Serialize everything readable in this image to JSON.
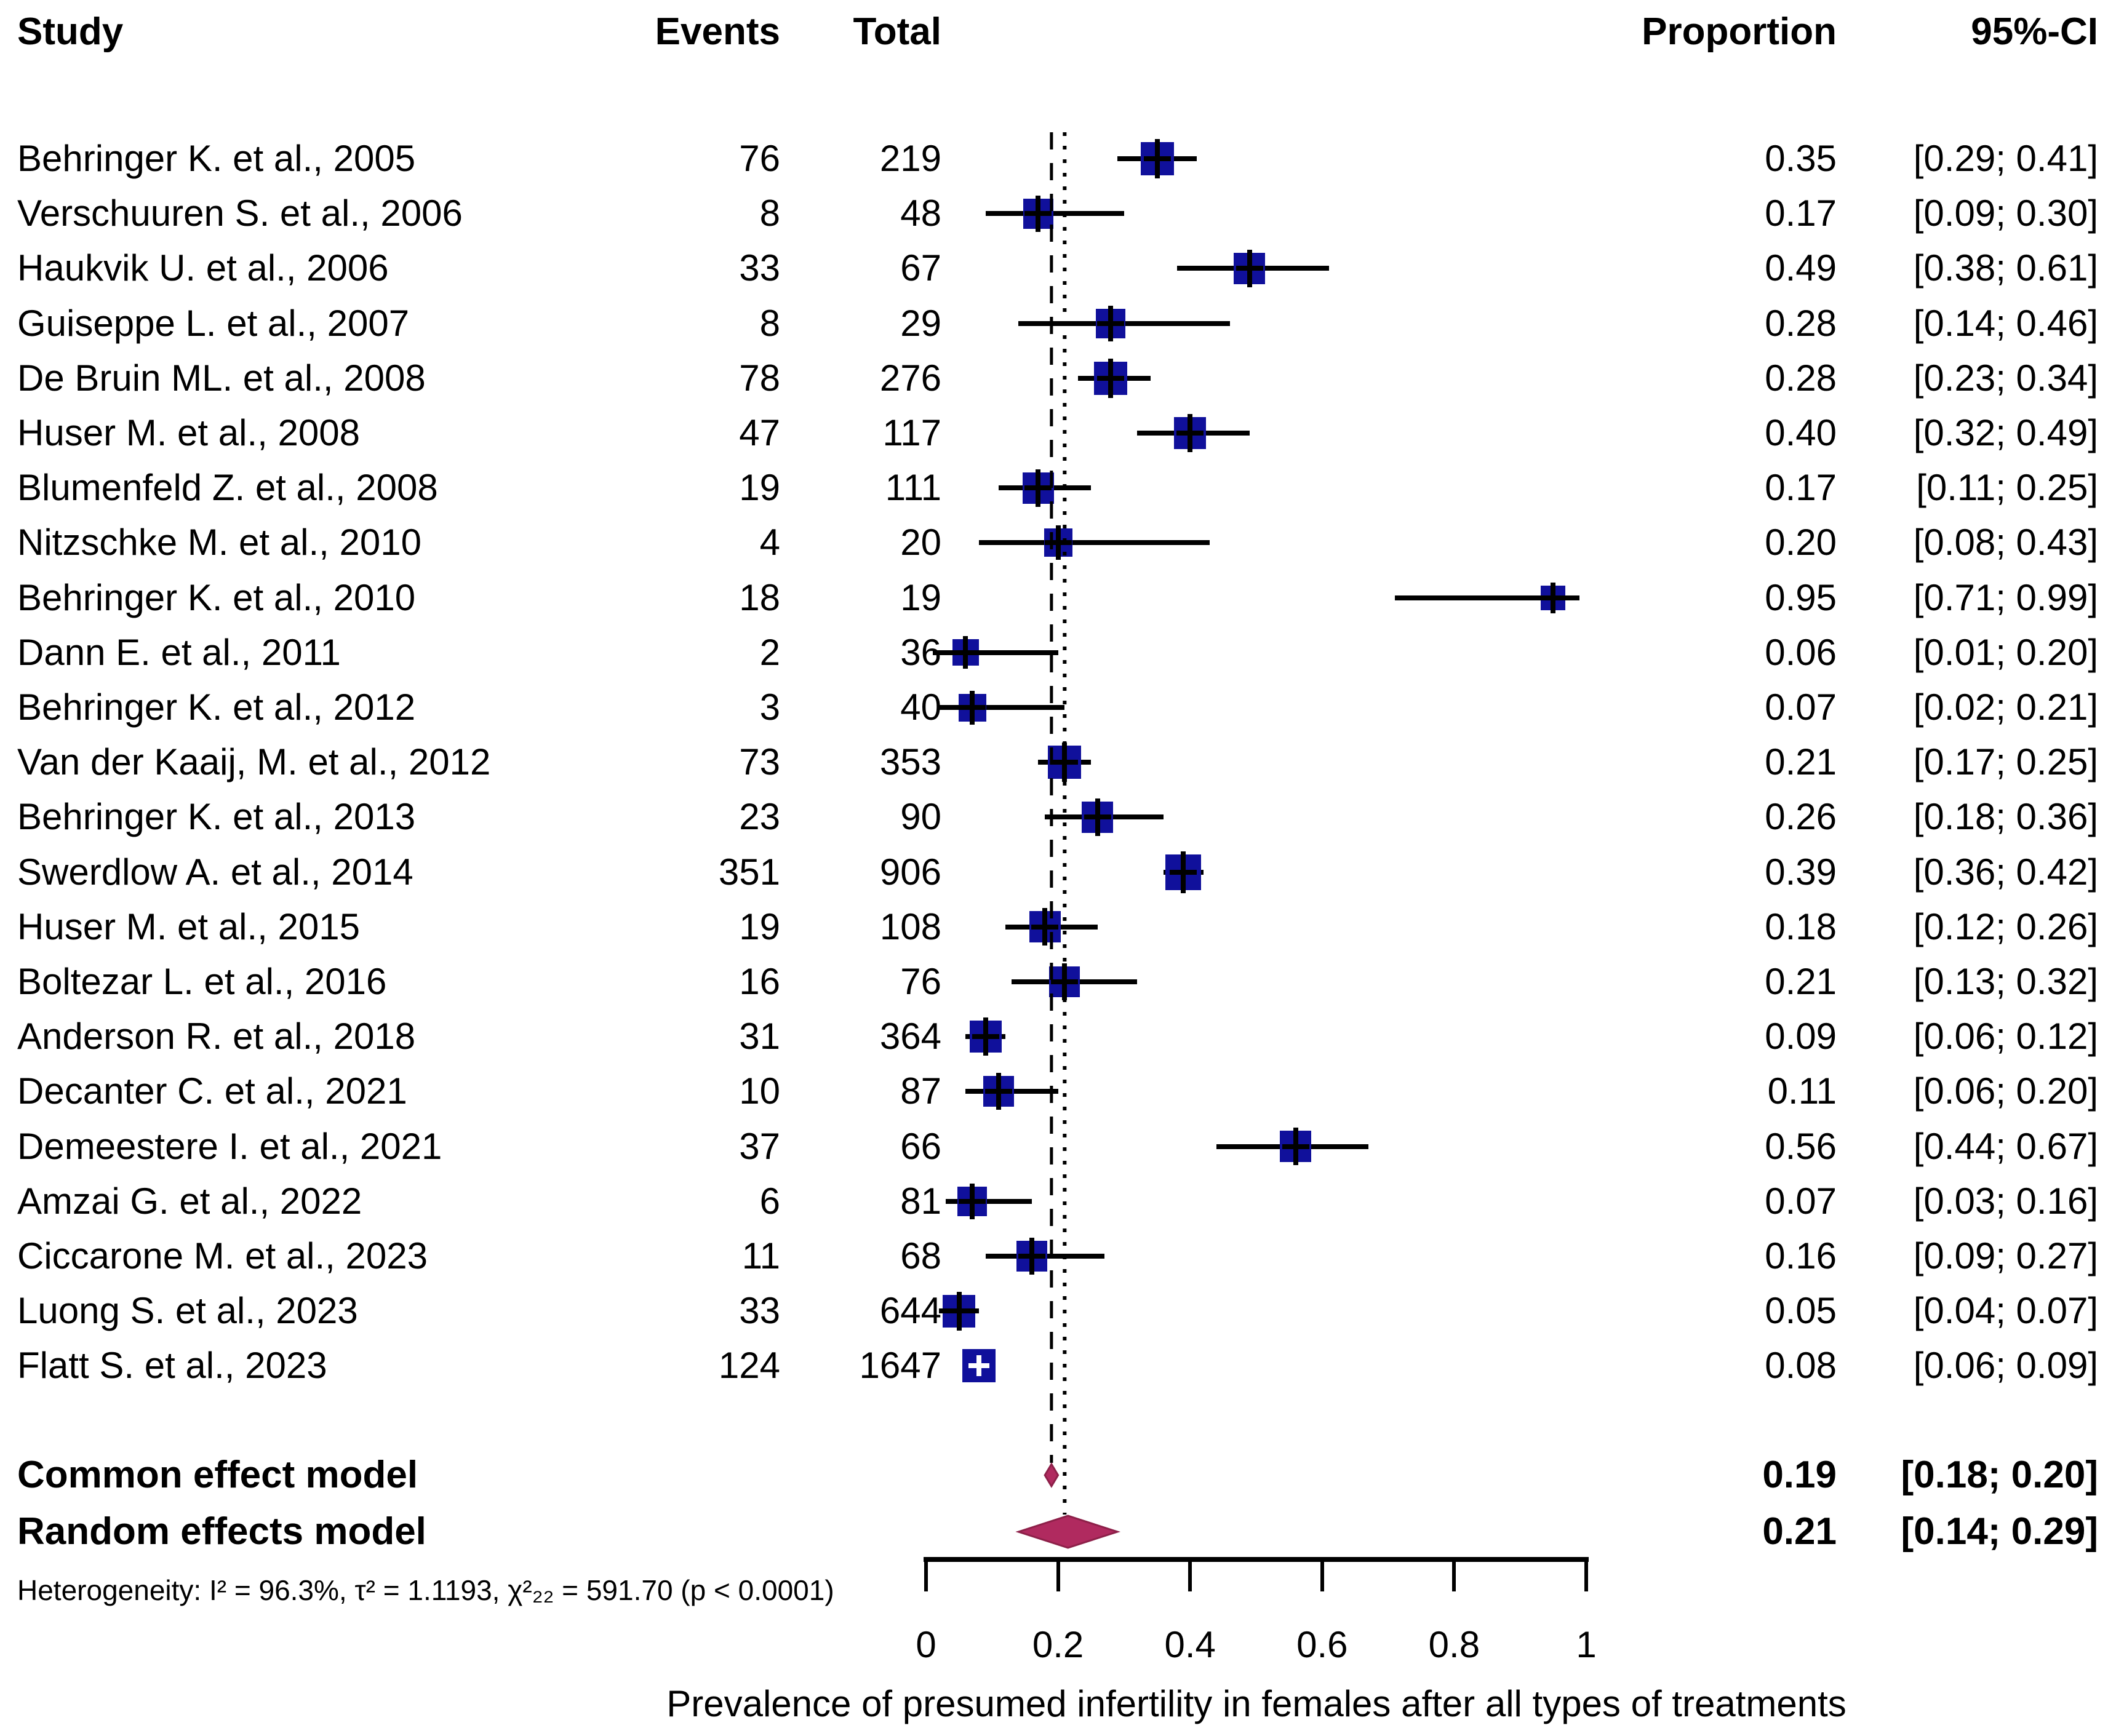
{
  "chart_data": {
    "type": "forest",
    "title": "",
    "xlabel": "Prevalence of presumed infertility in females after all types of treatments",
    "headers": {
      "study": "Study",
      "events": "Events",
      "total": "Total",
      "proportion": "Proportion",
      "ci": "95%-CI"
    },
    "axis": {
      "min": 0,
      "max": 1,
      "ticks": [
        0,
        0.2,
        0.4,
        0.6,
        0.8,
        1
      ],
      "tick_labels": [
        "0",
        "0.2",
        "0.4",
        "0.6",
        "0.8",
        "1"
      ]
    },
    "studies": [
      {
        "name": "Behringer K. et al., 2005",
        "events": 76,
        "total": 219,
        "proportion": 0.35,
        "ci_lower": 0.29,
        "ci_upper": 0.41,
        "proportion_label": "0.35",
        "ci_label": "[0.29; 0.41]",
        "marker_px": 54,
        "cross": "black"
      },
      {
        "name": "Verschuuren S. et al., 2006",
        "events": 8,
        "total": 48,
        "proportion": 0.17,
        "ci_lower": 0.09,
        "ci_upper": 0.3,
        "proportion_label": "0.17",
        "ci_label": "[0.09; 0.30]",
        "marker_px": 49,
        "cross": "black"
      },
      {
        "name": "Haukvik U. et al., 2006",
        "events": 33,
        "total": 67,
        "proportion": 0.49,
        "ci_lower": 0.38,
        "ci_upper": 0.61,
        "proportion_label": "0.49",
        "ci_label": "[0.38; 0.61]",
        "marker_px": 51,
        "cross": "black"
      },
      {
        "name": "Guiseppe L. et al., 2007",
        "events": 8,
        "total": 29,
        "proportion": 0.28,
        "ci_lower": 0.14,
        "ci_upper": 0.46,
        "proportion_label": "0.28",
        "ci_label": "[0.14; 0.46]",
        "marker_px": 48,
        "cross": "black"
      },
      {
        "name": "De Bruin ML. et al., 2008",
        "events": 78,
        "total": 276,
        "proportion": 0.28,
        "ci_lower": 0.23,
        "ci_upper": 0.34,
        "proportion_label": "0.28",
        "ci_label": "[0.23; 0.34]",
        "marker_px": 54,
        "cross": "black"
      },
      {
        "name": "Huser M. et al., 2008",
        "events": 47,
        "total": 117,
        "proportion": 0.4,
        "ci_lower": 0.32,
        "ci_upper": 0.49,
        "proportion_label": "0.40",
        "ci_label": "[0.32; 0.49]",
        "marker_px": 52,
        "cross": "black"
      },
      {
        "name": "Blumenfeld Z. et al., 2008",
        "events": 19,
        "total": 111,
        "proportion": 0.17,
        "ci_lower": 0.11,
        "ci_upper": 0.25,
        "proportion_label": "0.17",
        "ci_label": "[0.11; 0.25]",
        "marker_px": 51,
        "cross": "black"
      },
      {
        "name": "Nitzschke M. et al., 2010",
        "events": 4,
        "total": 20,
        "proportion": 0.2,
        "ci_lower": 0.08,
        "ci_upper": 0.43,
        "proportion_label": "0.20",
        "ci_label": "[0.08; 0.43]",
        "marker_px": 46,
        "cross": "black"
      },
      {
        "name": "Behringer K. et al., 2010",
        "events": 18,
        "total": 19,
        "proportion": 0.95,
        "ci_lower": 0.71,
        "ci_upper": 0.99,
        "proportion_label": "0.95",
        "ci_label": "[0.71; 0.99]",
        "marker_px": 40,
        "cross": "black"
      },
      {
        "name": "Dann E. et al., 2011",
        "events": 2,
        "total": 36,
        "proportion": 0.06,
        "ci_lower": 0.01,
        "ci_upper": 0.2,
        "proportion_label": "0.06",
        "ci_label": "[0.01; 0.20]",
        "marker_px": 43,
        "cross": "black"
      },
      {
        "name": "Behringer K. et al., 2012",
        "events": 3,
        "total": 40,
        "proportion": 0.07,
        "ci_lower": 0.02,
        "ci_upper": 0.21,
        "proportion_label": "0.07",
        "ci_label": "[0.02; 0.21]",
        "marker_px": 45,
        "cross": "black"
      },
      {
        "name": "Van der Kaaij, M. et al., 2012",
        "events": 73,
        "total": 353,
        "proportion": 0.21,
        "ci_lower": 0.17,
        "ci_upper": 0.25,
        "proportion_label": "0.21",
        "ci_label": "[0.17; 0.25]",
        "marker_px": 54,
        "cross": "black"
      },
      {
        "name": "Behringer K. et al., 2013",
        "events": 23,
        "total": 90,
        "proportion": 0.26,
        "ci_lower": 0.18,
        "ci_upper": 0.36,
        "proportion_label": "0.26",
        "ci_label": "[0.18; 0.36]",
        "marker_px": 51,
        "cross": "black"
      },
      {
        "name": "Swerdlow A. et al., 2014",
        "events": 351,
        "total": 906,
        "proportion": 0.39,
        "ci_lower": 0.36,
        "ci_upper": 0.42,
        "proportion_label": "0.39",
        "ci_label": "[0.36; 0.42]",
        "marker_px": 58,
        "cross": "black"
      },
      {
        "name": "Huser M. et al., 2015",
        "events": 19,
        "total": 108,
        "proportion": 0.18,
        "ci_lower": 0.12,
        "ci_upper": 0.26,
        "proportion_label": "0.18",
        "ci_label": "[0.12; 0.26]",
        "marker_px": 51,
        "cross": "black"
      },
      {
        "name": "Boltezar L. et al., 2016",
        "events": 16,
        "total": 76,
        "proportion": 0.21,
        "ci_lower": 0.13,
        "ci_upper": 0.32,
        "proportion_label": "0.21",
        "ci_label": "[0.13; 0.32]",
        "marker_px": 50,
        "cross": "black"
      },
      {
        "name": "Anderson R. et al., 2018",
        "events": 31,
        "total": 364,
        "proportion": 0.09,
        "ci_lower": 0.06,
        "ci_upper": 0.12,
        "proportion_label": "0.09",
        "ci_label": "[0.06; 0.12]",
        "marker_px": 52,
        "cross": "black"
      },
      {
        "name": "Decanter C. et al., 2021",
        "events": 10,
        "total": 87,
        "proportion": 0.11,
        "ci_lower": 0.06,
        "ci_upper": 0.2,
        "proportion_label": "0.11",
        "ci_label": "[0.06; 0.20]",
        "marker_px": 50,
        "cross": "black"
      },
      {
        "name": "Demeestere I. et al., 2021",
        "events": 37,
        "total": 66,
        "proportion": 0.56,
        "ci_lower": 0.44,
        "ci_upper": 0.67,
        "proportion_label": "0.56",
        "ci_label": "[0.44; 0.67]",
        "marker_px": 51,
        "cross": "black"
      },
      {
        "name": "Amzai G. et al., 2022",
        "events": 6,
        "total": 81,
        "proportion": 0.07,
        "ci_lower": 0.03,
        "ci_upper": 0.16,
        "proportion_label": "0.07",
        "ci_label": "[0.03; 0.16]",
        "marker_px": 48,
        "cross": "black"
      },
      {
        "name": "Ciccarone M. et al., 2023",
        "events": 11,
        "total": 68,
        "proportion": 0.16,
        "ci_lower": 0.09,
        "ci_upper": 0.27,
        "proportion_label": "0.16",
        "ci_label": "[0.09; 0.27]",
        "marker_px": 50,
        "cross": "black"
      },
      {
        "name": "Luong S. et al., 2023",
        "events": 33,
        "total": 644,
        "proportion": 0.05,
        "ci_lower": 0.04,
        "ci_upper": 0.07,
        "proportion_label": "0.05",
        "ci_label": "[0.04; 0.07]",
        "marker_px": 53,
        "cross": "black"
      },
      {
        "name": "Flatt S. et al., 2023",
        "events": 124,
        "total": 1647,
        "proportion": 0.08,
        "ci_lower": 0.06,
        "ci_upper": 0.09,
        "proportion_label": "0.08",
        "ci_label": "[0.06; 0.09]",
        "marker_px": 54,
        "cross": "white"
      }
    ],
    "models": [
      {
        "label": "Common effect model",
        "proportion": 0.19,
        "ci_lower": 0.18,
        "ci_upper": 0.2,
        "proportion_label": "0.19",
        "ci_label": "[0.18; 0.20]",
        "line_style": "dashed"
      },
      {
        "label": "Random effects model",
        "proportion": 0.21,
        "ci_lower": 0.14,
        "ci_upper": 0.29,
        "proportion_label": "0.21",
        "ci_label": "[0.14; 0.29]",
        "line_style": "dotted"
      }
    ],
    "heterogeneity": "Heterogeneity: I² = 96.3%, τ² = 1.1193, χ²₂₂ = 591.70 (p < 0.0001)",
    "colors": {
      "square": "#10109b",
      "ci_line": "#000000",
      "diamond_fill": "#b02a5f",
      "diamond_stroke": "#8d2049"
    }
  }
}
